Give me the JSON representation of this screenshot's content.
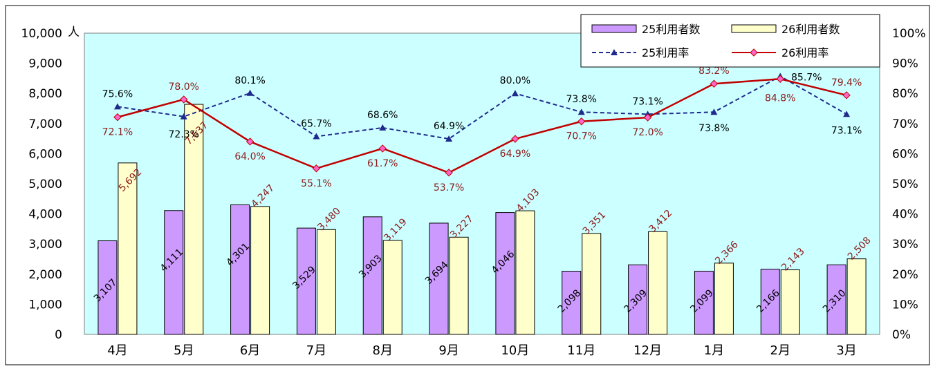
{
  "chart_data": {
    "type": "bar",
    "categories": [
      "4月",
      "5月",
      "6月",
      "7月",
      "8月",
      "9月",
      "10月",
      "11月",
      "12月",
      "1月",
      "2月",
      "3月"
    ],
    "left_axis": {
      "unit": "人",
      "min": 0,
      "max": 10000,
      "step": 1000,
      "ticks": [
        "0",
        "1,000",
        "2,000",
        "3,000",
        "4,000",
        "5,000",
        "6,000",
        "7,000",
        "8,000",
        "9,000",
        "10,000"
      ]
    },
    "right_axis": {
      "min": 0,
      "max": 100,
      "step": 10,
      "ticks": [
        "0%",
        "10%",
        "20%",
        "30%",
        "40%",
        "50%",
        "60%",
        "70%",
        "80%",
        "90%",
        "100%"
      ]
    },
    "series": [
      {
        "name": "25利用者数",
        "kind": "bar",
        "color": "#cc99ff",
        "values": [
          3107,
          4111,
          4301,
          3529,
          3903,
          3694,
          4046,
          2098,
          2309,
          2099,
          2166,
          2310
        ],
        "labels": [
          "3,107",
          "4,111",
          "4,301",
          "3,529",
          "3,903",
          "3,694",
          "4,046",
          "2,098",
          "2,309",
          "2,099",
          "2,166",
          "2,310"
        ]
      },
      {
        "name": "26利用者数",
        "kind": "bar",
        "color": "#ffffcc",
        "values": [
          5692,
          7637,
          4247,
          3480,
          3119,
          3227,
          4103,
          3351,
          3412,
          2366,
          2143,
          2508
        ],
        "labels": [
          "5,692",
          "7,637",
          "4,247",
          "3,480",
          "3,119",
          "3,227",
          "4,103",
          "3,351",
          "3,412",
          "2,366",
          "2,143",
          "2,508"
        ]
      },
      {
        "name": "25利用率",
        "kind": "line",
        "color": "#1f2a8c",
        "dash": true,
        "values": [
          75.6,
          72.3,
          80.1,
          65.7,
          68.6,
          64.9,
          80.0,
          73.8,
          73.1,
          73.8,
          85.7,
          73.1
        ],
        "labels": [
          "75.6%",
          "72.3%",
          "80.1%",
          "65.7%",
          "68.6%",
          "64.9%",
          "80.0%",
          "73.8%",
          "73.1%",
          "73.8%",
          "85.7%",
          "73.1%"
        ]
      },
      {
        "name": "26利用率",
        "kind": "line",
        "color": "#c00000",
        "dash": false,
        "values": [
          72.1,
          78.0,
          64.0,
          55.1,
          61.7,
          53.7,
          64.9,
          70.7,
          72.0,
          83.2,
          84.8,
          79.4
        ],
        "labels": [
          "72.1%",
          "78.0%",
          "64.0%",
          "55.1%",
          "61.7%",
          "53.7%",
          "64.9%",
          "70.7%",
          "72.0%",
          "83.2%",
          "84.8%",
          "79.4%"
        ]
      }
    ],
    "legend_position": "top-right",
    "plot_background": "#ccffff",
    "grid": false
  }
}
